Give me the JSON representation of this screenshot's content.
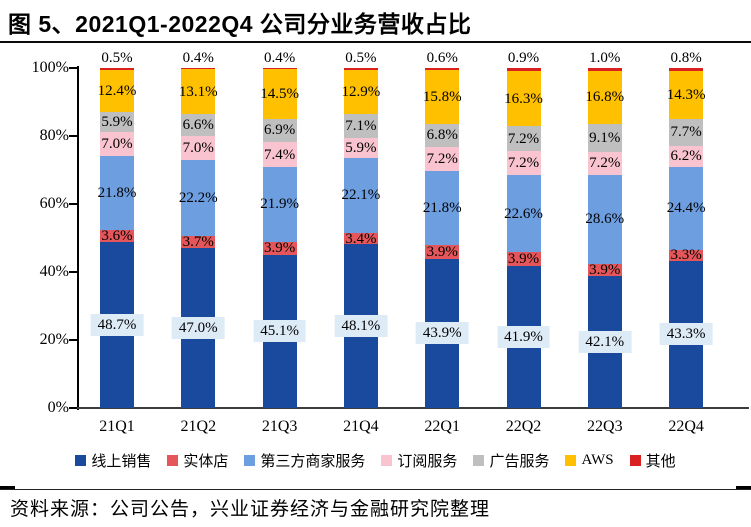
{
  "title": "图 5、2021Q1-2022Q4 公司分业务营收占比",
  "source": "资料来源：公司公告，兴业证券经济与金融研究院整理",
  "chart_data": {
    "type": "bar",
    "stacked": true,
    "percent_stacked": true,
    "title": "图 5、2021Q1-2022Q4 公司分业务营收占比",
    "xlabel": "",
    "ylabel": "",
    "ylim": [
      0,
      100
    ],
    "yticks": [
      "0%",
      "20%",
      "40%",
      "60%",
      "80%",
      "100%"
    ],
    "grid": false,
    "legend_position": "bottom",
    "categories": [
      "21Q1",
      "21Q2",
      "21Q3",
      "21Q4",
      "22Q1",
      "22Q2",
      "22Q3",
      "22Q4"
    ],
    "series": [
      {
        "name": "线上销售",
        "color": "#1A4A9E",
        "values": [
          48.7,
          47.0,
          45.1,
          48.1,
          43.9,
          41.9,
          42.1,
          43.3
        ]
      },
      {
        "name": "实体店",
        "color": "#E4565A",
        "values": [
          3.6,
          3.7,
          3.9,
          3.4,
          3.9,
          3.9,
          3.9,
          3.3
        ]
      },
      {
        "name": "第三方商家服务",
        "color": "#6D9EE0",
        "values": [
          21.8,
          22.2,
          21.9,
          22.1,
          21.8,
          22.6,
          28.6,
          24.4
        ]
      },
      {
        "name": "订阅服务",
        "color": "#F9C4CF",
        "values": [
          7.0,
          7.0,
          7.4,
          5.9,
          7.2,
          7.2,
          7.2,
          6.2
        ]
      },
      {
        "name": "广告服务",
        "color": "#BFBFBF",
        "values": [
          5.9,
          6.6,
          6.9,
          7.1,
          6.8,
          7.2,
          9.1,
          7.7
        ]
      },
      {
        "name": "AWS",
        "color": "#FFC000",
        "values": [
          12.4,
          13.1,
          14.5,
          12.9,
          15.8,
          16.3,
          16.8,
          14.3
        ]
      },
      {
        "name": "其他",
        "color": "#D92121",
        "values": [
          0.5,
          0.4,
          0.4,
          0.5,
          0.6,
          0.9,
          1.0,
          0.8
        ]
      }
    ],
    "label_colors": {
      "first_series_label_bg": "#DDEBF7"
    }
  }
}
